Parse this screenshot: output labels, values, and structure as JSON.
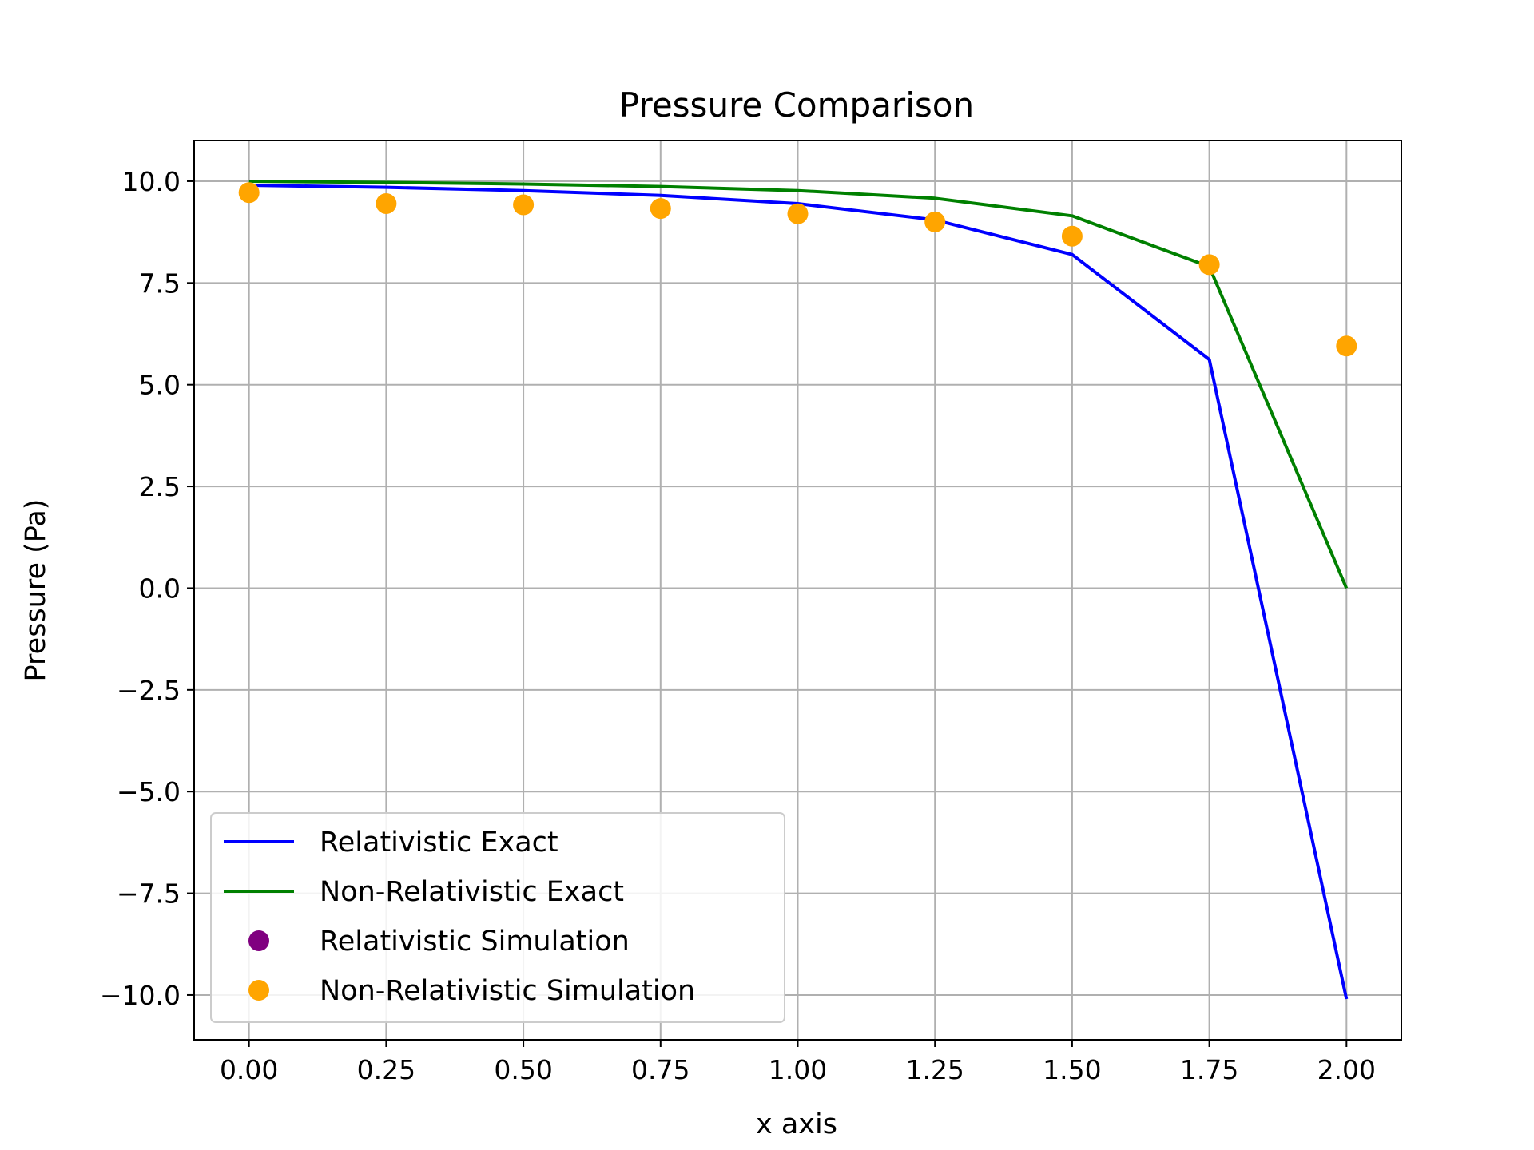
{
  "chart_data": {
    "type": "line",
    "title": "Pressure Comparison",
    "xlabel": "x axis",
    "ylabel": "Pressure (Pa)",
    "xlim": [
      -0.1,
      2.1
    ],
    "ylim": [
      -11.1,
      11.0
    ],
    "grid": true,
    "legend_position": "lower-left",
    "x_ticks": [
      0.0,
      0.25,
      0.5,
      0.75,
      1.0,
      1.25,
      1.5,
      1.75,
      2.0
    ],
    "x_tick_labels": [
      "0.00",
      "0.25",
      "0.50",
      "0.75",
      "1.00",
      "1.25",
      "1.50",
      "1.75",
      "2.00"
    ],
    "y_ticks": [
      10.0,
      7.5,
      5.0,
      2.5,
      0.0,
      -2.5,
      -5.0,
      -7.5,
      -10.0
    ],
    "y_tick_labels": [
      "10.0",
      "7.5",
      "5.0",
      "2.5",
      "0.0",
      "−2.5",
      "−5.0",
      "−7.5",
      "−10.0"
    ],
    "series": [
      {
        "name": "Relativistic Exact",
        "kind": "line",
        "color": "#0000ff",
        "x": [
          0.0,
          0.25,
          0.5,
          0.75,
          1.0,
          1.25,
          1.5,
          1.75,
          2.0
        ],
        "y": [
          9.9,
          9.85,
          9.77,
          9.65,
          9.45,
          9.05,
          8.2,
          5.62,
          -10.1
        ]
      },
      {
        "name": "Non-Relativistic Exact",
        "kind": "line",
        "color": "#008000",
        "x": [
          0.0,
          0.25,
          0.5,
          0.75,
          1.0,
          1.25,
          1.5,
          1.75,
          2.0
        ],
        "y": [
          10.0,
          9.97,
          9.93,
          9.87,
          9.77,
          9.58,
          9.15,
          7.9,
          0.0
        ]
      },
      {
        "name": "Relativistic Simulation",
        "kind": "scatter",
        "color": "#800080",
        "x": [],
        "y": []
      },
      {
        "name": "Non-Relativistic Simulation",
        "kind": "scatter",
        "color": "#ffa500",
        "x": [
          0.0,
          0.25,
          0.5,
          0.75,
          1.0,
          1.25,
          1.5,
          1.75,
          2.0
        ],
        "y": [
          9.72,
          9.45,
          9.42,
          9.33,
          9.2,
          9.0,
          8.65,
          7.95,
          5.95
        ]
      }
    ]
  }
}
